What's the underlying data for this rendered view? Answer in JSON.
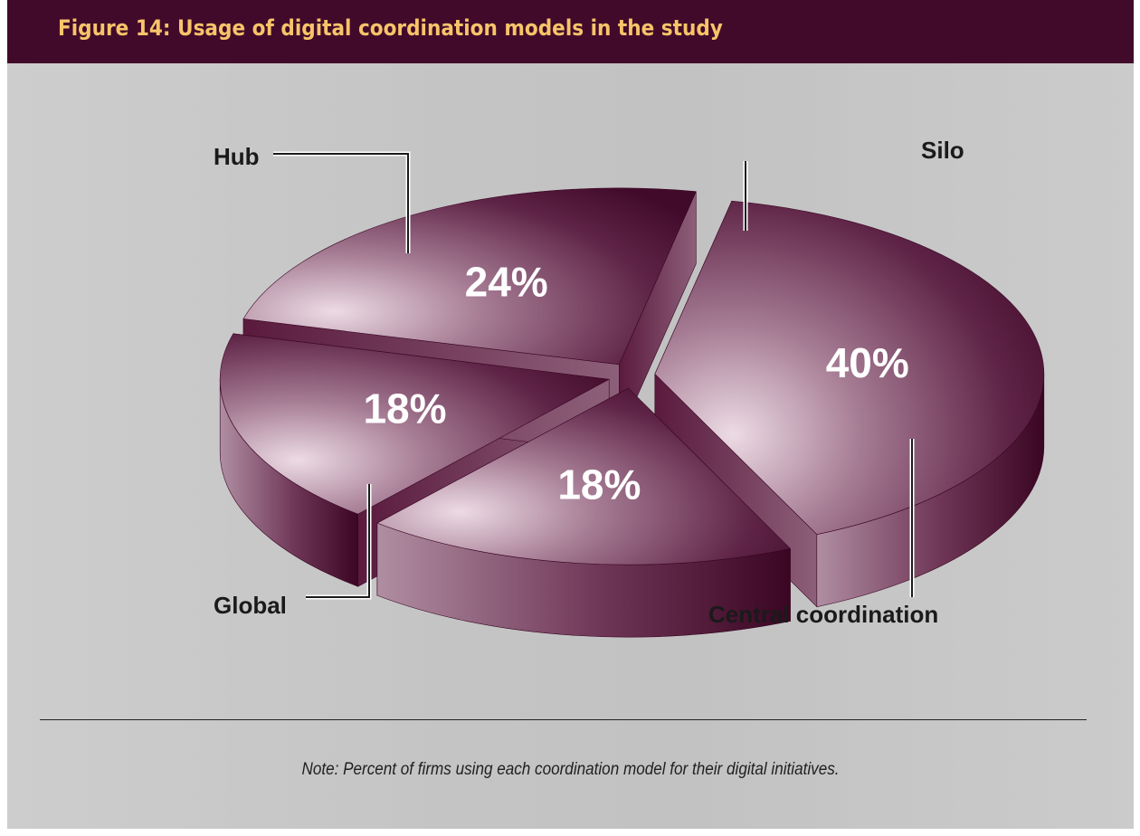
{
  "header": {
    "title": "Figure 14: Usage of digital coordination models in the study"
  },
  "chart_data": {
    "type": "pie",
    "title": "Figure 14: Usage of digital coordination models in the study",
    "slices": [
      {
        "label": "Silo",
        "value": 24,
        "value_label": "24%"
      },
      {
        "label": "Central coordination",
        "value": 40,
        "value_label": "40%"
      },
      {
        "label": "Global",
        "value": 18,
        "value_label": "18%"
      },
      {
        "label": "Hub",
        "value": 18,
        "value_label": "18%"
      }
    ],
    "unit": "%",
    "style": "3d-exploded",
    "colors": {
      "dark": "#420a2a",
      "mid": "#7a4763",
      "light": "#e9d6e0",
      "header_bg": "#420a2a",
      "title_text": "#f7c46a"
    }
  },
  "note": "Note: Percent of firms using each coordination model for their digital initiatives."
}
